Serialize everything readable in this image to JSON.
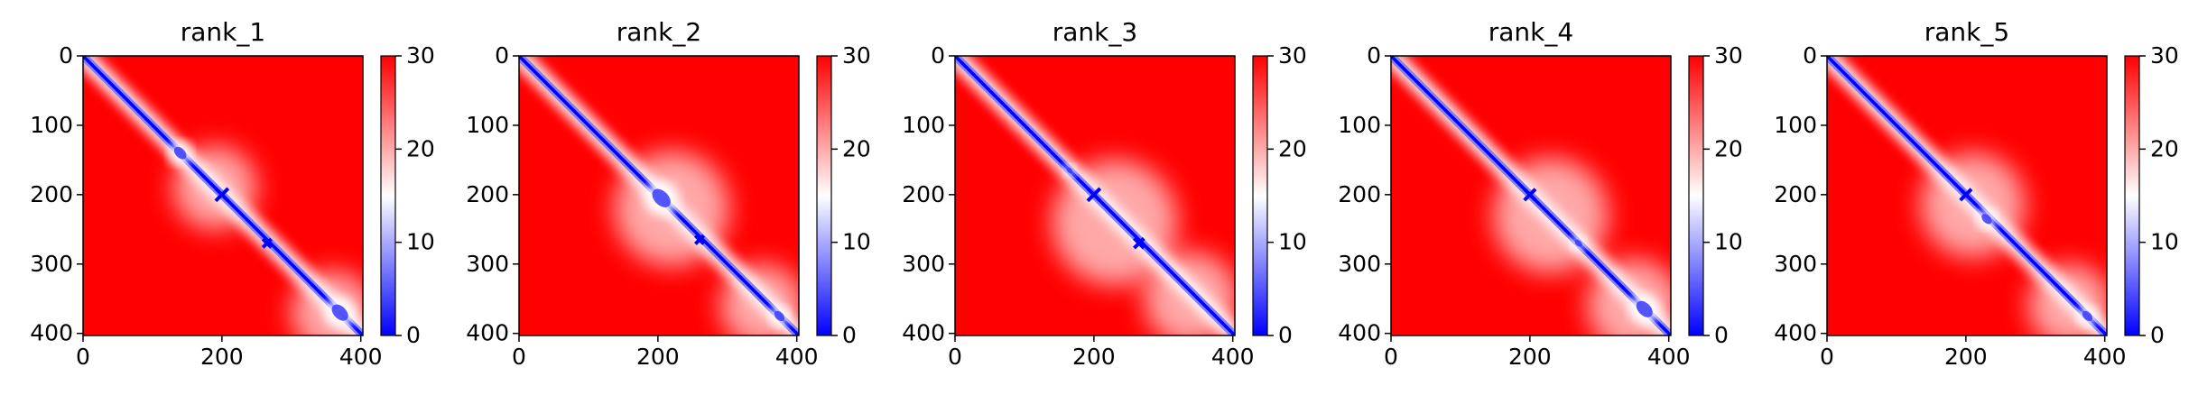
{
  "figure": {
    "panel_count": 5
  },
  "colors": {
    "low": "#0000ff",
    "mid": "#ffffff",
    "high": "#ff0000",
    "axis": "#000000"
  },
  "chart_data": [
    {
      "type": "heatmap",
      "title": "rank_1",
      "colormap": "bwr",
      "xlim": [
        0,
        403
      ],
      "ylim": [
        403,
        0
      ],
      "xticks": [
        0,
        200,
        400
      ],
      "yticks": [
        0,
        100,
        200,
        300,
        400
      ],
      "colorbar": {
        "ticks": [
          0,
          10,
          20,
          30
        ],
        "range": [
          0,
          30
        ]
      },
      "features": [
        {
          "kind": "diagonal-band"
        },
        {
          "kind": "blue-cluster",
          "center": [
            140,
            140
          ],
          "size": 30
        },
        {
          "kind": "blue-cross",
          "center": [
            200,
            200
          ],
          "size": 18
        },
        {
          "kind": "blue-cross",
          "center": [
            265,
            270
          ],
          "size": 12
        },
        {
          "kind": "blue-cluster",
          "center": [
            370,
            370
          ],
          "size": 40
        },
        {
          "kind": "light-region",
          "center": [
            190,
            190
          ],
          "size": 80
        },
        {
          "kind": "light-region",
          "center": [
            360,
            370
          ],
          "size": 80
        }
      ]
    },
    {
      "type": "heatmap",
      "title": "rank_2",
      "colormap": "bwr",
      "xlim": [
        0,
        403
      ],
      "ylim": [
        403,
        0
      ],
      "xticks": [
        0,
        200,
        400
      ],
      "yticks": [
        0,
        100,
        200,
        300,
        400
      ],
      "colorbar": {
        "ticks": [
          0,
          10,
          20,
          30
        ],
        "range": [
          0,
          30
        ]
      },
      "features": [
        {
          "kind": "diagonal-band"
        },
        {
          "kind": "blue-cluster",
          "center": [
            205,
            205
          ],
          "size": 45
        },
        {
          "kind": "blue-cross",
          "center": [
            260,
            265
          ],
          "size": 12
        },
        {
          "kind": "blue-cluster",
          "center": [
            375,
            375
          ],
          "size": 25
        },
        {
          "kind": "light-region",
          "center": [
            220,
            220
          ],
          "size": 110
        },
        {
          "kind": "light-region",
          "center": [
            350,
            360
          ],
          "size": 80
        }
      ]
    },
    {
      "type": "heatmap",
      "title": "rank_3",
      "colormap": "bwr",
      "xlim": [
        0,
        403
      ],
      "ylim": [
        403,
        0
      ],
      "xticks": [
        0,
        200,
        400
      ],
      "yticks": [
        0,
        100,
        200,
        300,
        400
      ],
      "colorbar": {
        "ticks": [
          0,
          10,
          20,
          30
        ],
        "range": [
          0,
          30
        ]
      },
      "features": [
        {
          "kind": "diagonal-band"
        },
        {
          "kind": "blue-cross",
          "center": [
            200,
            200
          ],
          "size": 18
        },
        {
          "kind": "blue-cross",
          "center": [
            265,
            270
          ],
          "size": 14
        },
        {
          "kind": "blue-cluster",
          "center": [
            165,
            165
          ],
          "size": 15
        },
        {
          "kind": "light-region",
          "center": [
            230,
            240
          ],
          "size": 120
        },
        {
          "kind": "light-region",
          "center": [
            340,
            350
          ],
          "size": 90
        }
      ]
    },
    {
      "type": "heatmap",
      "title": "rank_4",
      "colormap": "bwr",
      "xlim": [
        0,
        403
      ],
      "ylim": [
        403,
        0
      ],
      "xticks": [
        0,
        200,
        400
      ],
      "yticks": [
        0,
        100,
        200,
        300,
        400
      ],
      "colorbar": {
        "ticks": [
          0,
          10,
          20,
          30
        ],
        "range": [
          0,
          30
        ]
      },
      "features": [
        {
          "kind": "diagonal-band"
        },
        {
          "kind": "blue-cross",
          "center": [
            200,
            200
          ],
          "size": 16
        },
        {
          "kind": "blue-cluster",
          "center": [
            270,
            270
          ],
          "size": 18
        },
        {
          "kind": "blue-cluster",
          "center": [
            365,
            365
          ],
          "size": 40
        },
        {
          "kind": "light-region",
          "center": [
            230,
            230
          ],
          "size": 110
        },
        {
          "kind": "light-region",
          "center": [
            350,
            360
          ],
          "size": 90
        }
      ]
    },
    {
      "type": "heatmap",
      "title": "rank_5",
      "colormap": "bwr",
      "xlim": [
        0,
        403
      ],
      "ylim": [
        403,
        0
      ],
      "xticks": [
        0,
        200,
        400
      ],
      "yticks": [
        0,
        100,
        200,
        300,
        400
      ],
      "colorbar": {
        "ticks": [
          0,
          10,
          20,
          30
        ],
        "range": [
          0,
          30
        ]
      },
      "features": [
        {
          "kind": "diagonal-band"
        },
        {
          "kind": "blue-cross",
          "center": [
            200,
            200
          ],
          "size": 16
        },
        {
          "kind": "blue-cluster",
          "center": [
            230,
            235
          ],
          "size": 25
        },
        {
          "kind": "blue-cluster",
          "center": [
            375,
            375
          ],
          "size": 25
        },
        {
          "kind": "light-region",
          "center": [
            210,
            215
          ],
          "size": 100
        },
        {
          "kind": "light-region",
          "center": [
            350,
            360
          ],
          "size": 80
        }
      ]
    }
  ]
}
